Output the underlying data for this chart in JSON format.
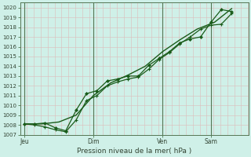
{
  "xlabel": "Pression niveau de la mer( hPa )",
  "bg_color": "#cff0e8",
  "grid_color_minor": "#e8e8e8",
  "grid_color_major": "#bbccbb",
  "line_color": "#1a5c1a",
  "ylim": [
    1007,
    1020.5
  ],
  "yticks": [
    1007,
    1008,
    1009,
    1010,
    1011,
    1012,
    1013,
    1014,
    1015,
    1016,
    1017,
    1018,
    1019,
    1020
  ],
  "xtick_labels": [
    "Jeu",
    "Dim",
    "Ven",
    "Sam"
  ],
  "xtick_positions": [
    0,
    3.333,
    6.667,
    9.0
  ],
  "xlim": [
    -0.2,
    10.8
  ],
  "vline_positions": [
    0,
    3.333,
    6.667,
    9.0
  ],
  "series1_x": [
    0,
    0.5,
    1.0,
    1.5,
    2.0,
    2.5,
    3.0,
    3.5,
    4.0,
    4.5,
    5.0,
    5.5,
    6.0,
    6.5,
    7.0,
    7.5,
    8.0,
    8.5,
    9.0,
    9.5,
    10.0
  ],
  "series1_y": [
    1008.1,
    1008.1,
    1008.2,
    1007.7,
    1007.4,
    1009.5,
    1011.2,
    1011.5,
    1012.5,
    1012.7,
    1013.0,
    1013.0,
    1014.1,
    1014.8,
    1015.5,
    1016.4,
    1016.8,
    1017.0,
    1018.5,
    1019.8,
    1019.6
  ],
  "series2_x": [
    0,
    0.5,
    1.0,
    1.5,
    2.0,
    2.5,
    3.0,
    3.5,
    4.0,
    4.5,
    5.0,
    5.5,
    6.0,
    6.5,
    7.0,
    7.5,
    8.0,
    8.5,
    9.0,
    9.5,
    10.0
  ],
  "series2_y": [
    1008.1,
    1008.0,
    1007.8,
    1007.5,
    1007.3,
    1008.5,
    1010.5,
    1011.0,
    1012.0,
    1012.4,
    1012.7,
    1012.9,
    1013.7,
    1014.7,
    1015.4,
    1016.3,
    1017.0,
    1017.8,
    1018.2,
    1018.3,
    1019.4
  ],
  "series3_x": [
    0,
    0.83,
    1.67,
    2.5,
    3.33,
    4.17,
    5.0,
    5.83,
    6.67,
    7.5,
    8.33,
    9.17,
    10.0
  ],
  "series3_y": [
    1008.1,
    1008.1,
    1008.3,
    1009.0,
    1011.0,
    1012.3,
    1013.1,
    1014.0,
    1015.5,
    1016.7,
    1017.8,
    1018.5,
    1019.9
  ]
}
